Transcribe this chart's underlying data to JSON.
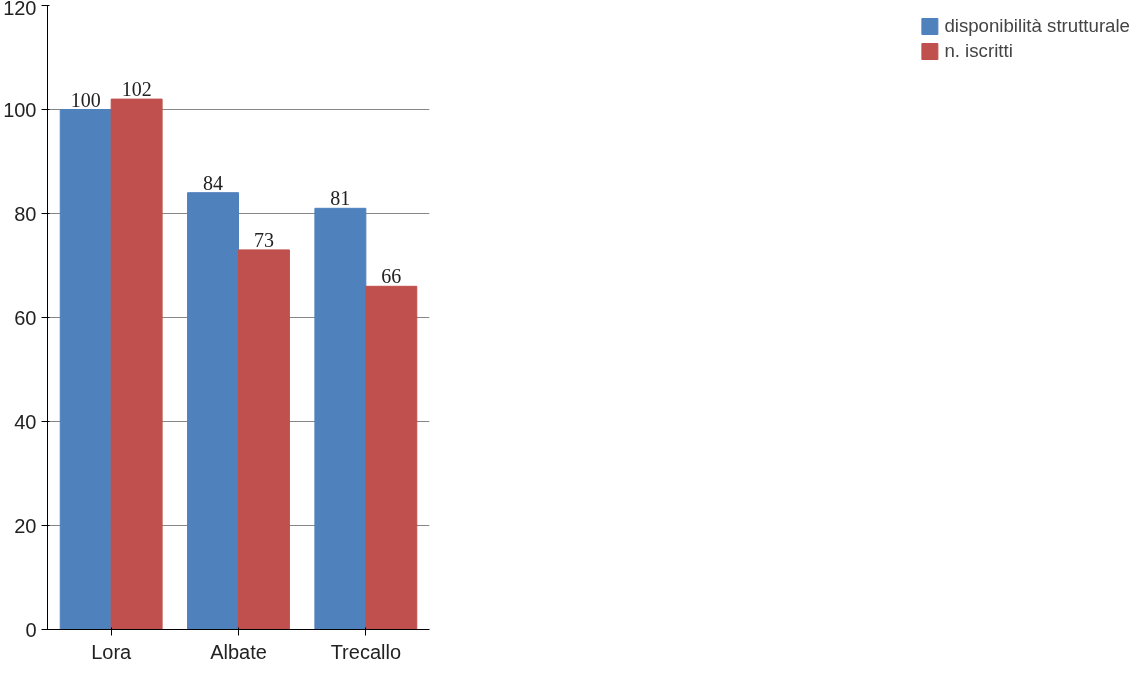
{
  "chart_data": {
    "type": "bar",
    "categories": [
      "Lora",
      "Albate",
      "Trecallo"
    ],
    "series": [
      {
        "name": "disponibilità strutturale",
        "color": "#4f81bd",
        "values": [
          100,
          84,
          81
        ]
      },
      {
        "name": "n. iscritti",
        "color": "#c0504d",
        "values": [
          102,
          73,
          66
        ]
      }
    ],
    "ylim": [
      0,
      120
    ],
    "yticks": [
      0,
      20,
      40,
      60,
      80,
      100,
      120
    ],
    "grid": "y",
    "legend": "right",
    "data_labels": true
  }
}
